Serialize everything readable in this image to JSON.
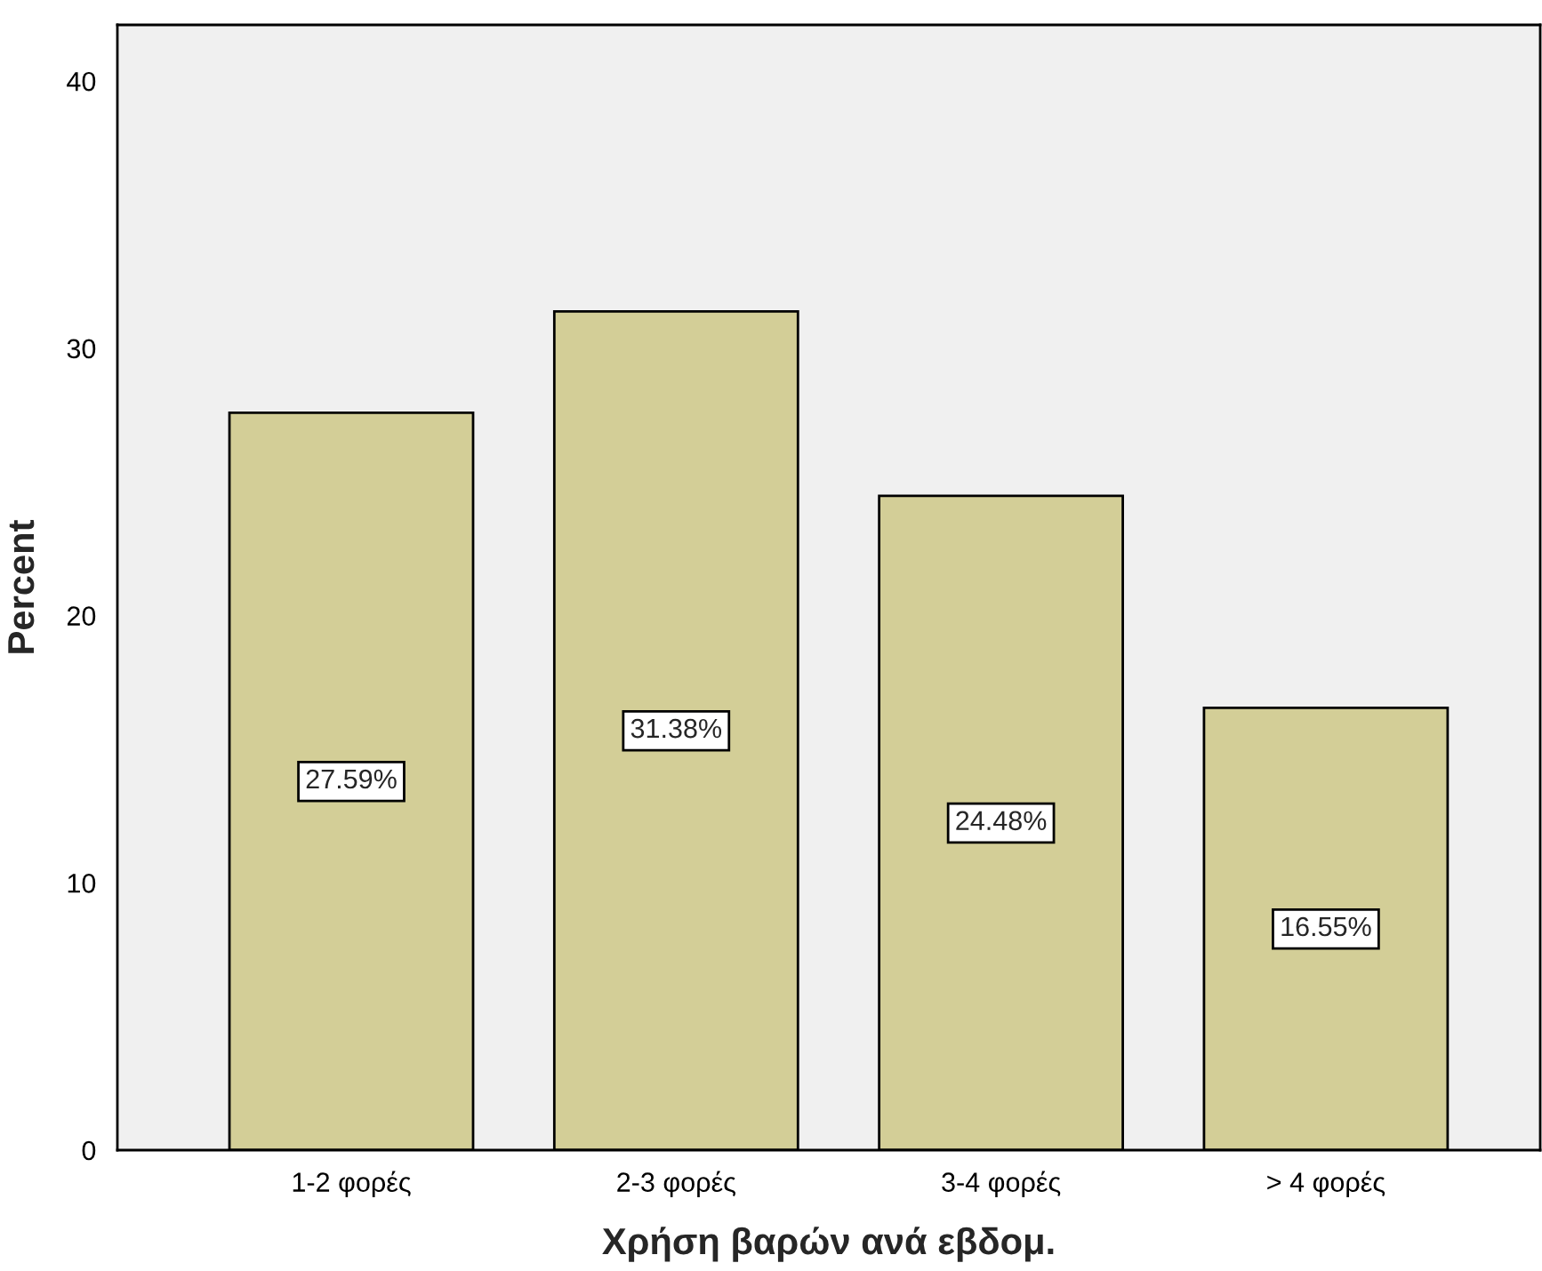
{
  "chart_data": {
    "type": "bar",
    "xlabel": "Χρήση βαρών ανά εβδομ.",
    "ylabel": "Percent",
    "categories": [
      "1-2 φορές",
      "2-3 φορές",
      "3-4 φορές",
      "> 4 φορές"
    ],
    "values": [
      27.59,
      31.38,
      24.48,
      16.55
    ],
    "value_labels": [
      "27.59%",
      "31.38%",
      "24.48%",
      "16.55%"
    ],
    "color": "#d3ce97",
    "ylim": [
      0,
      42.1
    ],
    "yticks": [
      0,
      10,
      20,
      30,
      40
    ],
    "grid": false,
    "legend": false
  }
}
